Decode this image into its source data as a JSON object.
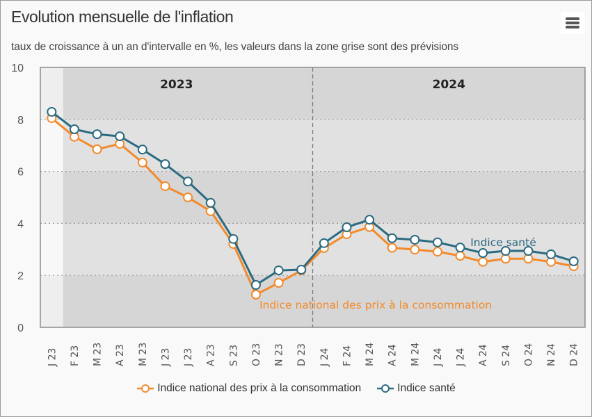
{
  "header": {
    "title": "Evolution mensuelle de l'inflation",
    "subtitle": "taux de croissance à un an d'intervalle en %, les valeurs dans la zone grise sont des prévisions",
    "menu_icon": "hamburger-menu-icon"
  },
  "colors": {
    "ipc": "#f28a2c",
    "sante": "#2b6a80",
    "forecast_band_dark": "#d6d6d6",
    "forecast_band_light": "#e1e1e1",
    "actual_band_dark": "#eeeeee",
    "actual_band_light": "#f8f8f8",
    "year_label": "#222222"
  },
  "chart_data": {
    "type": "line",
    "title": "Evolution mensuelle de l'inflation",
    "subtitle": "taux de croissance à un an d'intervalle en %, les valeurs dans la zone grise sont des prévisions",
    "xlabel": "",
    "ylabel": "",
    "ylim": [
      0,
      10
    ],
    "yticks": [
      0,
      2,
      4,
      6,
      8,
      10
    ],
    "grid": "horizontal-dotted",
    "categories": [
      "J 23",
      "F 23",
      "M 23",
      "A 23",
      "M 23",
      "J 23",
      "J 23",
      "A 23",
      "S 23",
      "O 23",
      "N 23",
      "D 23",
      "J 24",
      "F 24",
      "M 24",
      "A 24",
      "M 24",
      "J 24",
      "J 24",
      "A 24",
      "S 24",
      "O 24",
      "N 24",
      "D 24"
    ],
    "forecast_start_index": 1,
    "year_separator_index": 12,
    "year_labels": [
      {
        "label": "2023",
        "center_index": 5.5
      },
      {
        "label": "2024",
        "center_index": 17.5
      }
    ],
    "series": [
      {
        "name": "Indice national des prix à la consommation",
        "color": "#f28a2c",
        "values": [
          8.05,
          7.33,
          6.85,
          7.06,
          6.34,
          5.43,
          5.0,
          4.47,
          3.21,
          1.26,
          1.71,
          2.19,
          3.05,
          3.58,
          3.86,
          3.06,
          2.99,
          2.91,
          2.75,
          2.52,
          2.64,
          2.64,
          2.52,
          2.35
        ],
        "annotation": {
          "text": "Indice national des prix à la consommation",
          "anchor_index": 9,
          "position": "below"
        }
      },
      {
        "name": "Indice santé",
        "color": "#2b6a80",
        "values": [
          8.29,
          7.62,
          7.43,
          7.35,
          6.84,
          6.28,
          5.61,
          4.79,
          3.4,
          1.63,
          2.19,
          2.22,
          3.24,
          3.85,
          4.14,
          3.43,
          3.37,
          3.27,
          3.07,
          2.86,
          2.94,
          2.94,
          2.81,
          2.54
        ],
        "annotation": {
          "text": "Indice santé",
          "anchor_index": 19,
          "position": "above"
        }
      }
    ],
    "legend": "bottom-center"
  },
  "legend": {
    "items": [
      {
        "label": "Indice national des prix à la consommation",
        "color": "#f28a2c"
      },
      {
        "label": "Indice santé",
        "color": "#2b6a80"
      }
    ]
  }
}
